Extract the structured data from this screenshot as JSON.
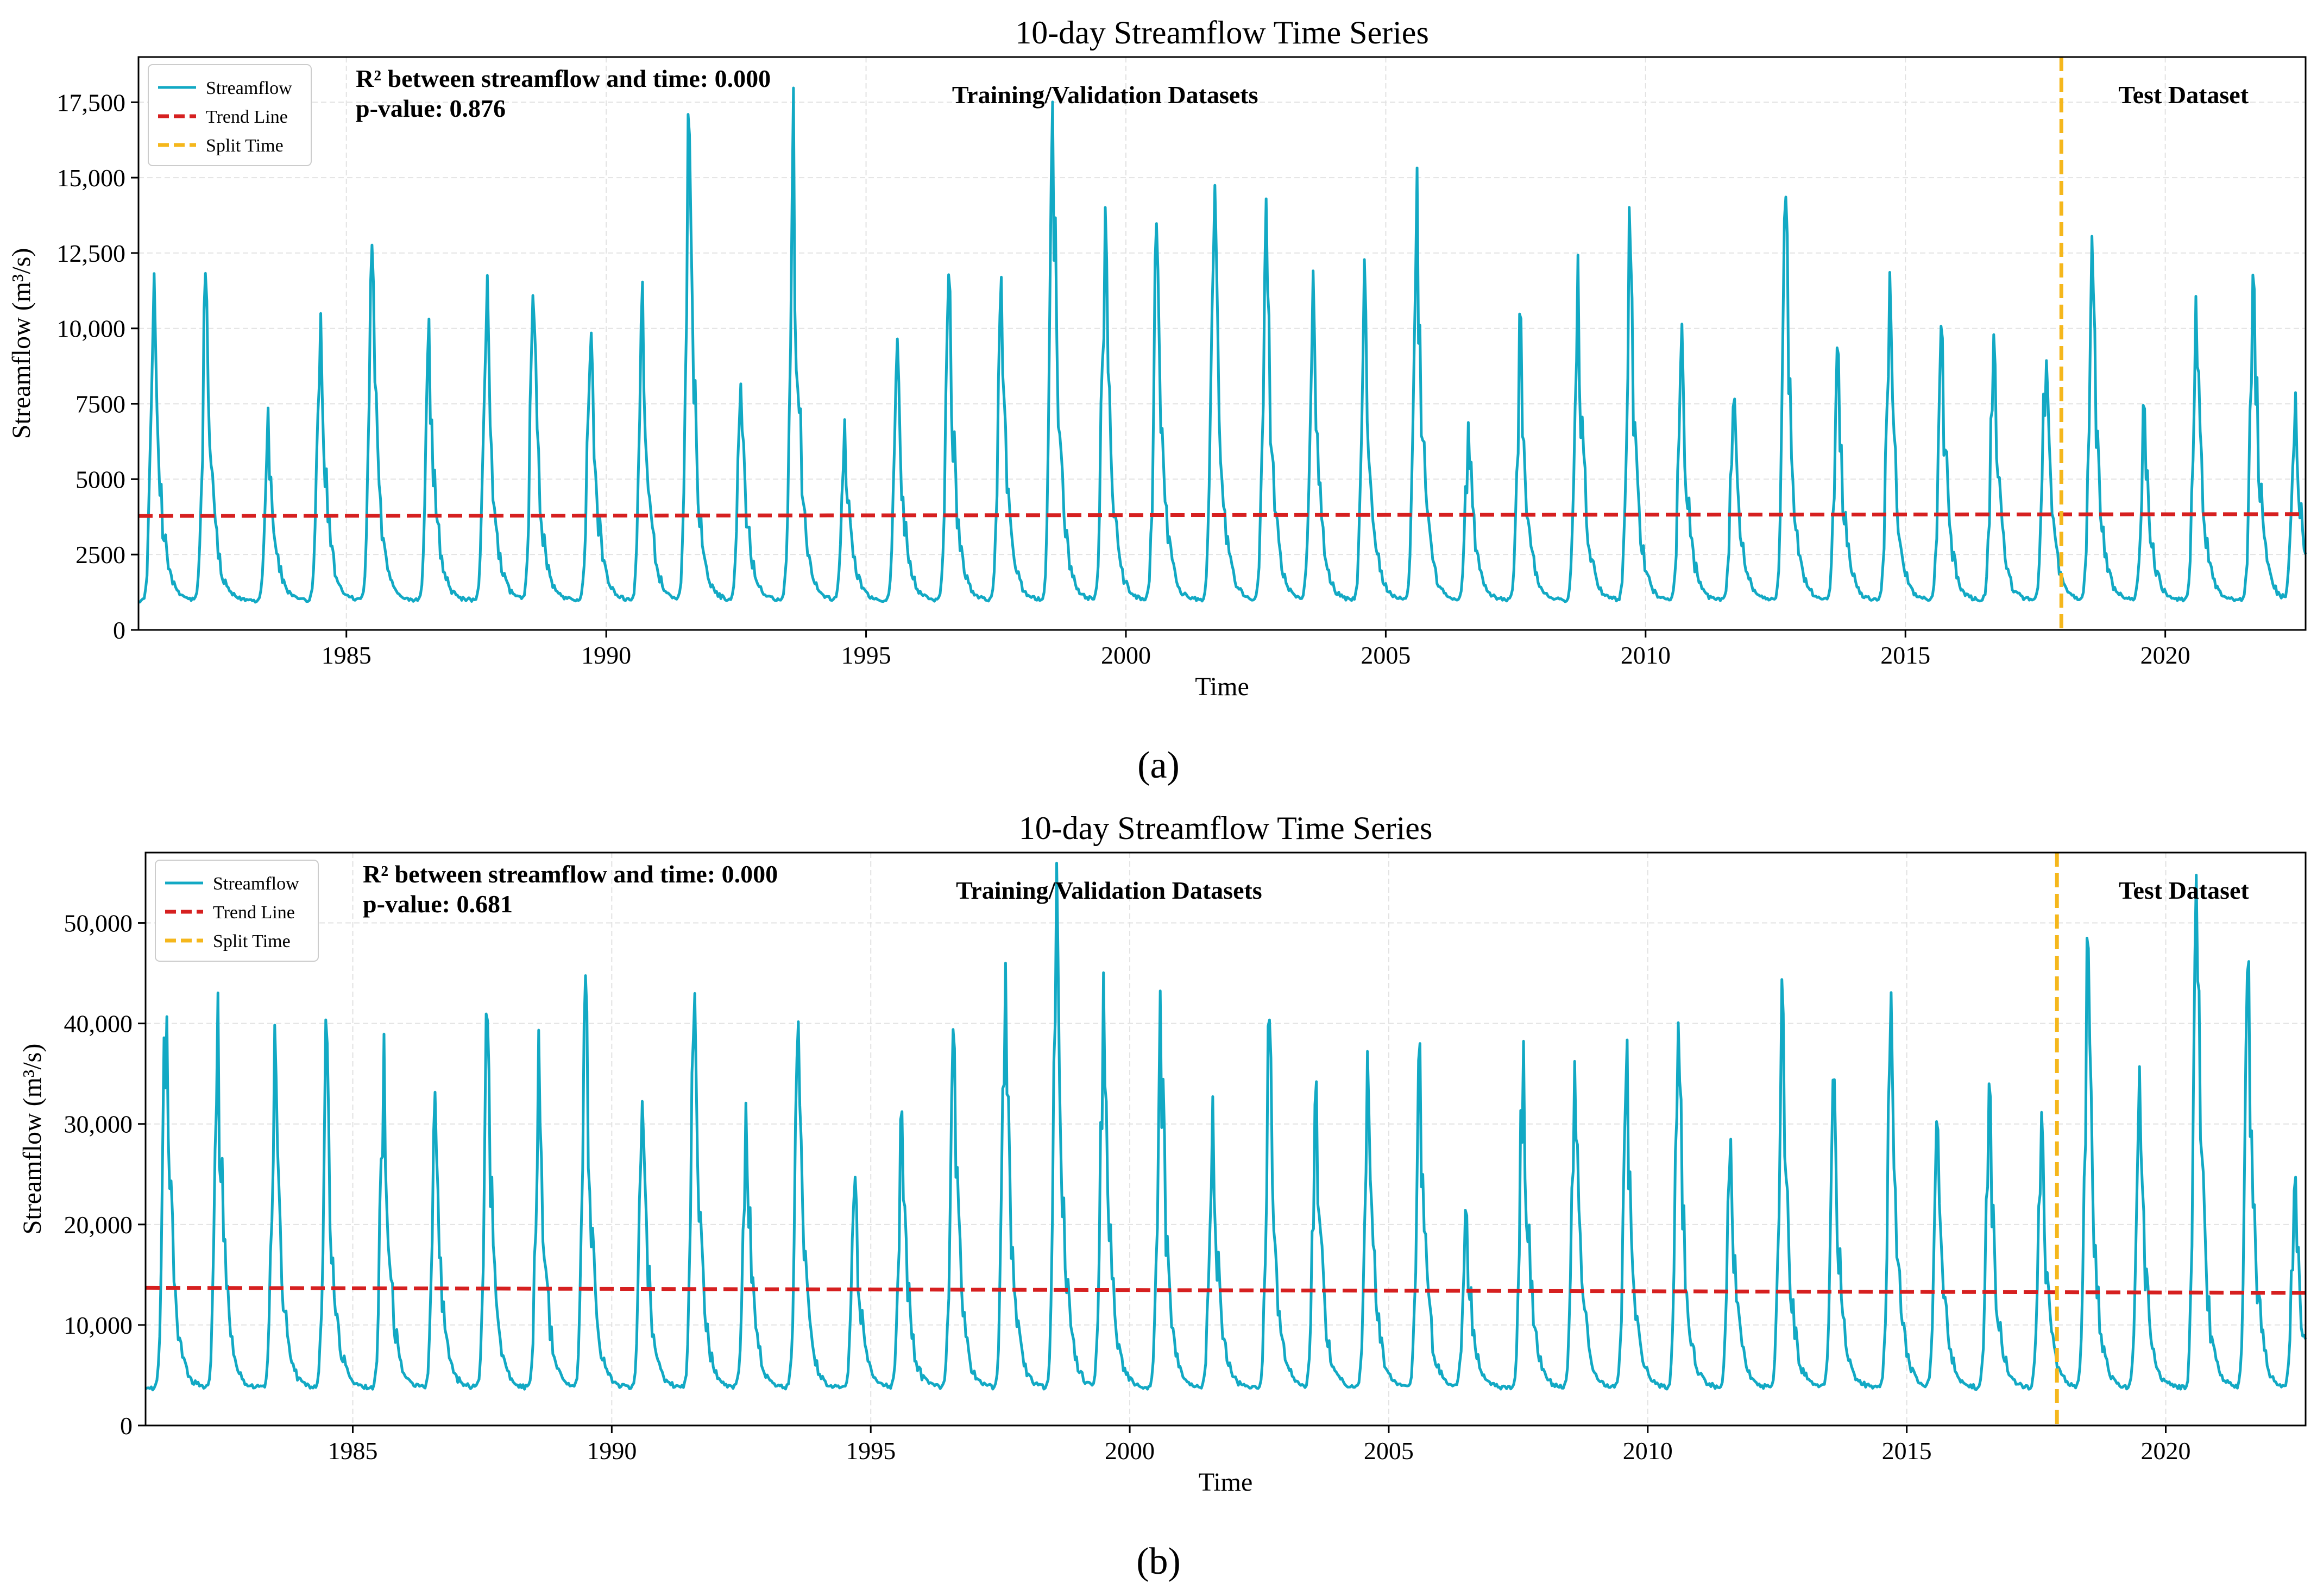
{
  "chart_data": [
    {
      "panel_label": "(a)",
      "type": "line",
      "title": "10-day Streamflow Time Series",
      "xlabel": "Time",
      "ylabel": "Streamflow (m³/s)",
      "xlim": [
        1981.0,
        2022.7
      ],
      "ylim": [
        0,
        19000
      ],
      "x_ticks": [
        1985,
        1990,
        1995,
        2000,
        2005,
        2010,
        2015,
        2020
      ],
      "x_tick_labels": [
        "1985",
        "1990",
        "1995",
        "2000",
        "2005",
        "2010",
        "2015",
        "2020"
      ],
      "y_ticks": [
        0,
        2500,
        5000,
        7500,
        10000,
        12500,
        15000,
        17500
      ],
      "y_tick_labels": [
        "0",
        "2500",
        "5000",
        "7500",
        "10,000",
        "12,500",
        "15,000",
        "17,500"
      ],
      "grid": true,
      "legend_position": "top-left",
      "legend": [
        {
          "name": "Streamflow",
          "style": "solid",
          "color": "#12a9c4"
        },
        {
          "name": "Trend Line",
          "style": "dashed",
          "color": "#d62020"
        },
        {
          "name": "Split Time",
          "style": "dashed",
          "color": "#f5b71c"
        }
      ],
      "annotations": {
        "r2_text": "R² between streamflow and time: 0.000",
        "p_text": "p-value: 0.876",
        "training_label": "Training/Validation Datasets",
        "test_label": "Test Dataset"
      },
      "split_time": 2018.0,
      "trend_line": {
        "x": [
          1981.0,
          2022.7
        ],
        "y": [
          3780,
          3840
        ]
      },
      "series": [
        {
          "name": "Streamflow",
          "baseflow": 1000,
          "annual_peaks": [
            [
              1981.3,
              11900
            ],
            [
              1982.3,
              12100
            ],
            [
              1983.5,
              7400
            ],
            [
              1984.5,
              11000
            ],
            [
              1985.5,
              12800
            ],
            [
              1986.6,
              10500
            ],
            [
              1987.7,
              12800
            ],
            [
              1988.6,
              11300
            ],
            [
              1989.7,
              10800
            ],
            [
              1990.7,
              11600
            ],
            [
              1991.6,
              16800
            ],
            [
              1992.6,
              8300
            ],
            [
              1993.6,
              18300
            ],
            [
              1994.6,
              7100
            ],
            [
              1995.6,
              9800
            ],
            [
              1996.6,
              12000
            ],
            [
              1997.6,
              11900
            ],
            [
              1998.6,
              17800
            ],
            [
              1999.6,
              14300
            ],
            [
              2000.6,
              13700
            ],
            [
              2001.7,
              16100
            ],
            [
              2002.7,
              14300
            ],
            [
              2003.6,
              12200
            ],
            [
              2004.6,
              12500
            ],
            [
              2005.6,
              15600
            ],
            [
              2006.6,
              7000
            ],
            [
              2007.6,
              10500
            ],
            [
              2008.7,
              12500
            ],
            [
              2009.7,
              13600
            ],
            [
              2010.7,
              10200
            ],
            [
              2011.7,
              8300
            ],
            [
              2012.7,
              14400
            ],
            [
              2013.7,
              10000
            ],
            [
              2014.7,
              11900
            ],
            [
              2015.7,
              10500
            ],
            [
              2016.7,
              9800
            ],
            [
              2017.7,
              9800
            ],
            [
              2018.6,
              13200
            ],
            [
              2019.6,
              7500
            ],
            [
              2020.6,
              11200
            ],
            [
              2021.7,
              12400
            ],
            [
              2022.5,
              8200
            ]
          ]
        }
      ]
    },
    {
      "panel_label": "(b)",
      "type": "line",
      "title": "10-day Streamflow Time Series",
      "xlabel": "Time",
      "ylabel": "Streamflow (m³/s)",
      "xlim": [
        1981.0,
        2022.7
      ],
      "ylim": [
        0,
        57000
      ],
      "x_ticks": [
        1985,
        1990,
        1995,
        2000,
        2005,
        2010,
        2015,
        2020
      ],
      "x_tick_labels": [
        "1985",
        "1990",
        "1995",
        "2000",
        "2005",
        "2010",
        "2015",
        "2020"
      ],
      "y_ticks": [
        0,
        10000,
        20000,
        30000,
        40000,
        50000
      ],
      "y_tick_labels": [
        "0",
        "10,000",
        "20,000",
        "30,000",
        "40,000",
        "50,000"
      ],
      "grid": true,
      "legend_position": "top-left",
      "legend": [
        {
          "name": "Streamflow",
          "style": "solid",
          "color": "#12a9c4"
        },
        {
          "name": "Trend Line",
          "style": "dashed",
          "color": "#d62020"
        },
        {
          "name": "Split Time",
          "style": "dashed",
          "color": "#f5b71c"
        }
      ],
      "annotations": {
        "r2_text": "R² between streamflow and time: 0.000",
        "p_text": "p-value: 0.681",
        "training_label": "Training/Validation Datasets",
        "test_label": "Test Dataset"
      },
      "split_time": 2017.9,
      "trend_line": {
        "x": [
          1981.0,
          2022.7
        ],
        "y": [
          13700,
          13200
        ]
      },
      "series": [
        {
          "name": "Streamflow",
          "baseflow": 3800,
          "annual_peaks": [
            [
              1981.4,
              44000
            ],
            [
              1982.4,
              43000
            ],
            [
              1983.5,
              40200
            ],
            [
              1984.5,
              40000
            ],
            [
              1985.6,
              39800
            ],
            [
              1986.6,
              33500
            ],
            [
              1987.6,
              41000
            ],
            [
              1988.6,
              40000
            ],
            [
              1989.5,
              45200
            ],
            [
              1990.6,
              32800
            ],
            [
              1991.6,
              44000
            ],
            [
              1992.6,
              32800
            ],
            [
              1993.6,
              41000
            ],
            [
              1994.7,
              24800
            ],
            [
              1995.6,
              32000
            ],
            [
              1996.6,
              39800
            ],
            [
              1997.6,
              46800
            ],
            [
              1998.6,
              56800
            ],
            [
              1999.5,
              45200
            ],
            [
              2000.6,
              43800
            ],
            [
              2001.6,
              33200
            ],
            [
              2002.7,
              40500
            ],
            [
              2003.6,
              35000
            ],
            [
              2004.6,
              37800
            ],
            [
              2005.6,
              39000
            ],
            [
              2006.5,
              22000
            ],
            [
              2007.6,
              39200
            ],
            [
              2008.6,
              37000
            ],
            [
              2009.6,
              39000
            ],
            [
              2010.6,
              40500
            ],
            [
              2011.6,
              29000
            ],
            [
              2012.6,
              45200
            ],
            [
              2013.6,
              35000
            ],
            [
              2014.7,
              43200
            ],
            [
              2015.6,
              30200
            ],
            [
              2016.6,
              34300
            ],
            [
              2017.6,
              32000
            ],
            [
              2018.5,
              50000
            ],
            [
              2019.5,
              36000
            ],
            [
              2020.6,
              55800
            ],
            [
              2021.6,
              47300
            ],
            [
              2022.5,
              26000
            ]
          ]
        }
      ]
    }
  ],
  "captions": [
    "(a)",
    "(b)"
  ]
}
